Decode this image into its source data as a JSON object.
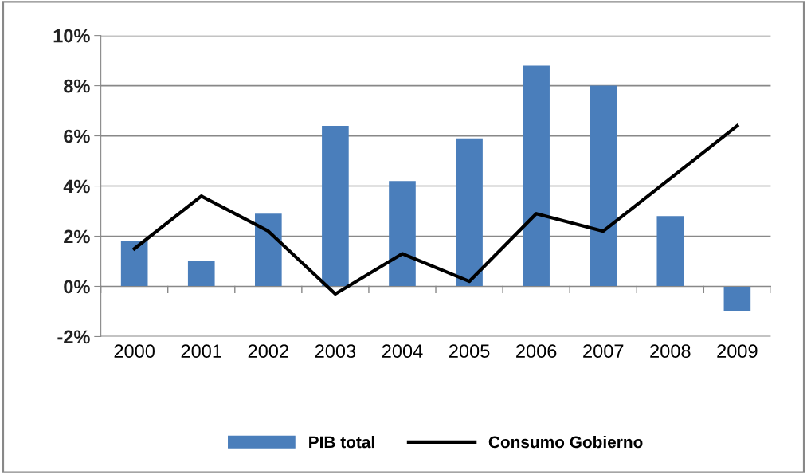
{
  "chart_data": {
    "type": "bar",
    "categories": [
      "2000",
      "2001",
      "2002",
      "2003",
      "2004",
      "2005",
      "2006",
      "2007",
      "2008",
      "2009"
    ],
    "series": [
      {
        "name": "PIB total",
        "color": "#4a7ebb",
        "values": [
          1.8,
          1.0,
          2.9,
          6.4,
          4.2,
          5.9,
          8.8,
          8.0,
          2.8,
          -1.0
        ]
      },
      {
        "name": "Consumo Gobierno",
        "type": "line",
        "color": "#000000",
        "values": [
          1.5,
          3.6,
          2.2,
          -0.3,
          1.3,
          0.2,
          2.9,
          2.2,
          4.3,
          6.4
        ]
      }
    ],
    "ylim": [
      -2,
      10
    ],
    "yticks": [
      {
        "value": -2,
        "label": "-2%"
      },
      {
        "value": 0,
        "label": "0%"
      },
      {
        "value": 2,
        "label": "2%"
      },
      {
        "value": 4,
        "label": "4%"
      },
      {
        "value": 6,
        "label": "6%"
      },
      {
        "value": 8,
        "label": "8%"
      },
      {
        "value": 10,
        "label": "10%"
      }
    ],
    "grid": "y",
    "legend": "bottom",
    "marker": "none",
    "line_style": "solid"
  }
}
